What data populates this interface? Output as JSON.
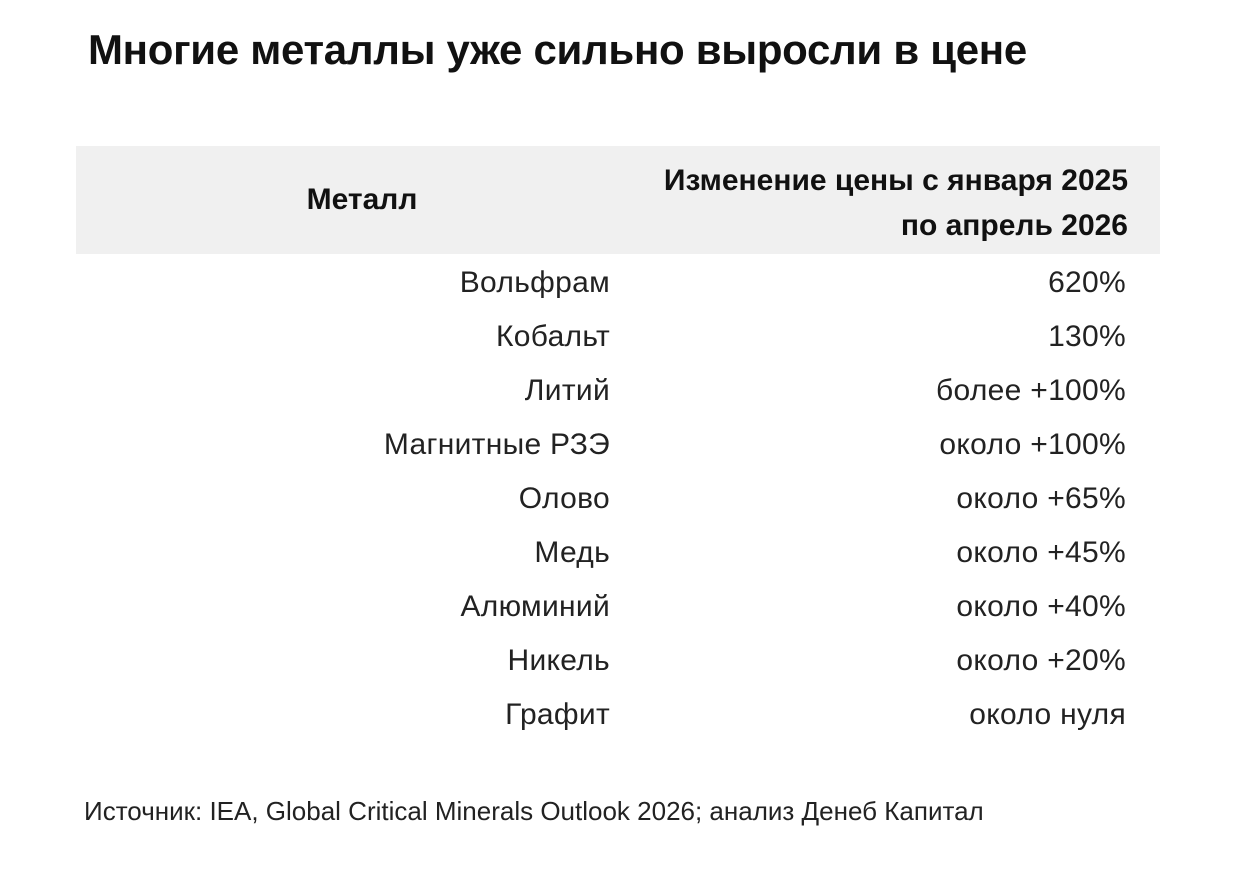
{
  "title": "Многие металлы уже сильно выросли в цене",
  "table": {
    "header": [
      "Металл",
      "Изменение цены с января 2025 по апрель 2026"
    ],
    "rows": [
      [
        "Вольфрам",
        "620%"
      ],
      [
        "Кобальт",
        "130%"
      ],
      [
        "Литий",
        "более +100%"
      ],
      [
        "Магнитные РЗЭ",
        "около +100%"
      ],
      [
        "Олово",
        "около +65%"
      ],
      [
        "Медь",
        "около +45%"
      ],
      [
        "Алюминий",
        "около +40%"
      ],
      [
        "Никель",
        "около +20%"
      ],
      [
        "Графит",
        "около нуля"
      ]
    ]
  },
  "source": "Источник: IEA, Global Critical Minerals Outlook 2026; анализ Денеб Капитал"
}
